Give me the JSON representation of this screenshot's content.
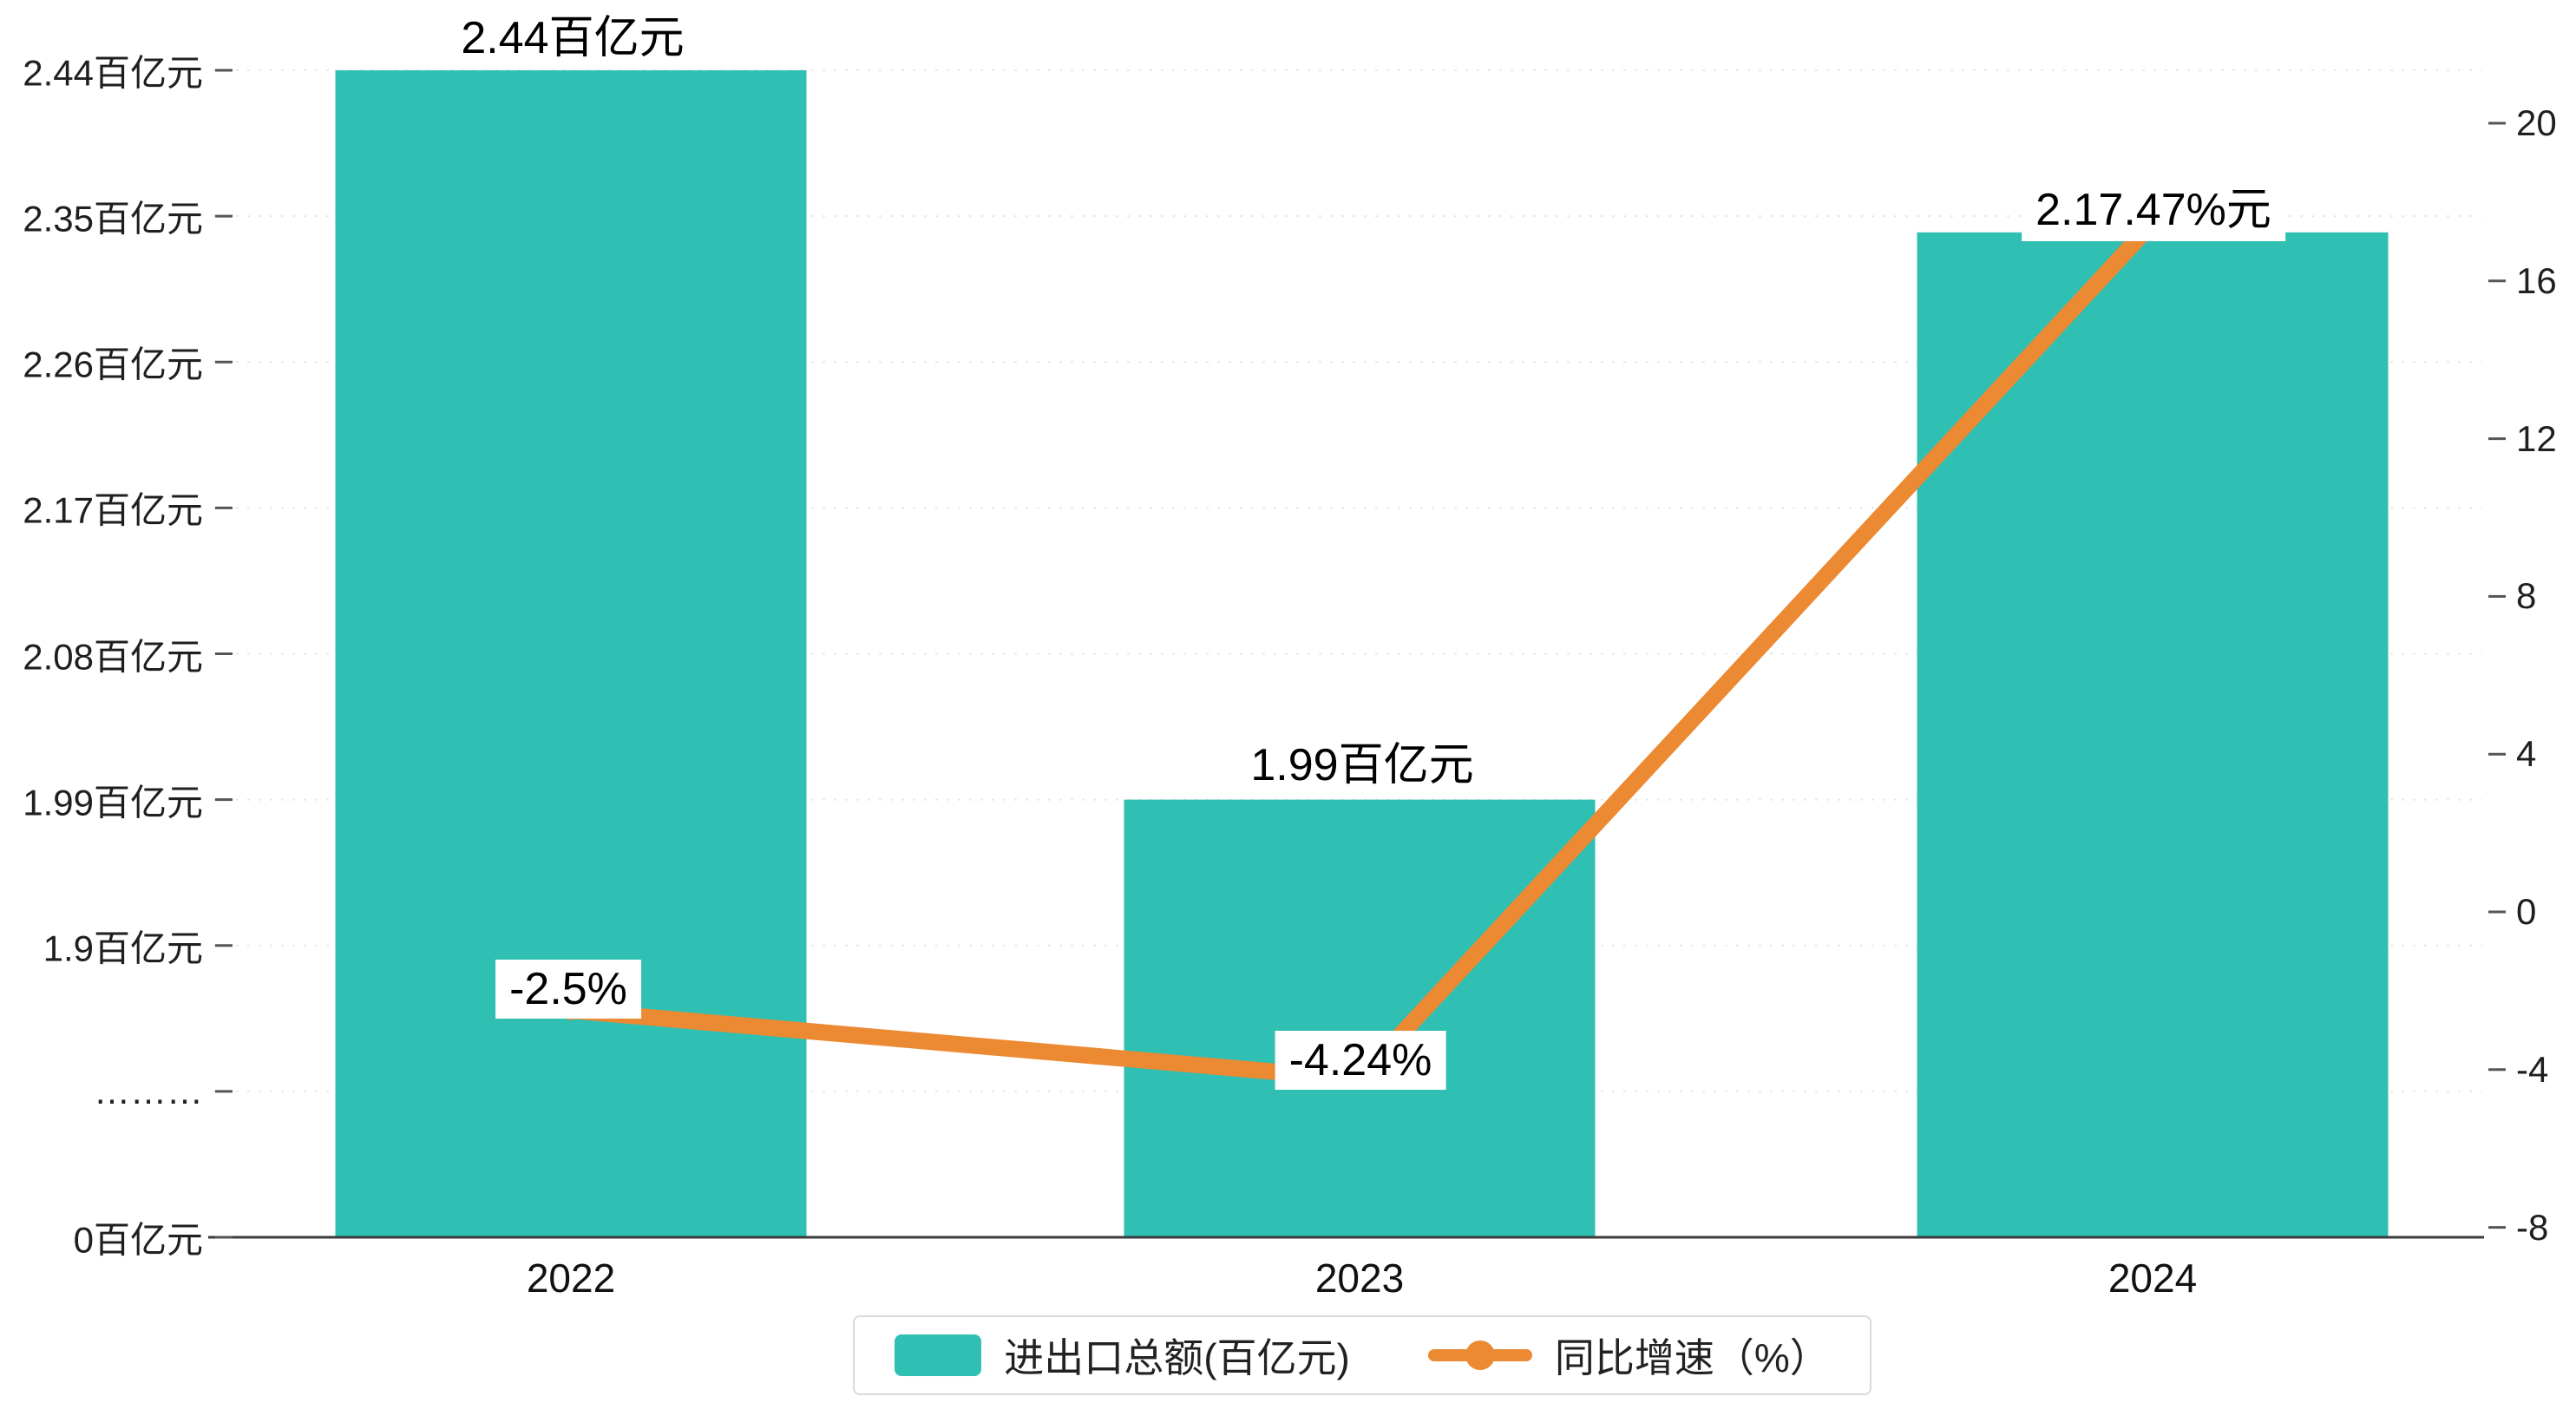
{
  "colors": {
    "bar": "#2fbfb3",
    "line": "#ec8a33",
    "axis": "#3c3c3c",
    "grid": "#e7e7e7",
    "tick_text": "#1f1f1f"
  },
  "chart_data": {
    "type": "combo",
    "categories": [
      "2022",
      "2023",
      "2024"
    ],
    "series": [
      {
        "name": "进出口总额(百亿元)",
        "type": "bar",
        "values": [
          2.44,
          1.99,
          2.34
        ],
        "labels": [
          "2.44百亿元",
          "1.99百亿元",
          "2.17.47%元"
        ]
      },
      {
        "name": "同比增速（%）",
        "type": "line",
        "values": [
          -2.5,
          -4.24,
          17.47
        ],
        "labels": [
          "-2.5%",
          "-4.24%",
          ""
        ]
      }
    ],
    "left_axis": {
      "title": "",
      "broken_axis": true,
      "ticks": [
        "2.44百亿元",
        "2.35百亿元",
        "2.26百亿元",
        "2.17百亿元",
        "2.08百亿元",
        "1.99百亿元",
        "1.9百亿元",
        "………",
        "0百亿元"
      ]
    },
    "right_axis": {
      "range": [
        -8,
        20
      ],
      "ticks": [
        "20",
        "16",
        "12",
        "8",
        "4",
        "0",
        "-4",
        "-8"
      ]
    },
    "legend": [
      {
        "label": "进出口总额(百亿元)",
        "marker": "bar"
      },
      {
        "label": "同比增速（%）",
        "marker": "line-dot"
      }
    ],
    "grid": "dotted-horizontal",
    "legend_position": "bottom-center"
  }
}
